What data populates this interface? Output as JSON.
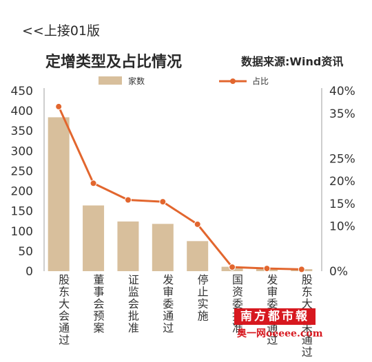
{
  "page": {
    "back_link": "<<上接01版",
    "source_note": "数据来源:Wind资讯"
  },
  "watermark": {
    "logo_text": "南方都市報",
    "site_text": "奥一网oeeee.com"
  },
  "chart_data": {
    "type": "bar",
    "title": "定增类型及占比情况",
    "categories": [
      "股东大会通过",
      "董事会预案",
      "证监会批准",
      "发审委通过",
      "停止实施",
      "国资委批准",
      "发审委未通过",
      "股东大会未通过"
    ],
    "series": [
      {
        "name": "家数",
        "type": "bar",
        "axis": "left",
        "color": "#d8bf9c",
        "values": [
          384,
          164,
          124,
          118,
          75,
          11,
          7,
          5
        ]
      },
      {
        "name": "占比",
        "type": "line",
        "axis": "right",
        "color": "#e2662e",
        "unit": "%",
        "values": [
          36.5,
          19.5,
          15.8,
          15.4,
          10.4,
          0.9,
          0.6,
          0.4
        ]
      }
    ],
    "ylim": [
      0,
      450
    ],
    "yticks": [
      "450",
      "400",
      "350",
      "300",
      "250",
      "200",
      "150",
      "100",
      "50",
      "0"
    ],
    "y2lim": [
      0,
      40
    ],
    "y2ticks": [
      "40%",
      "35%",
      "25%",
      "20%",
      "15%",
      "10%",
      "0%"
    ],
    "y2tick_values": [
      40,
      35,
      25,
      20,
      15,
      10,
      0
    ],
    "legend_position": "top",
    "grid": false
  }
}
